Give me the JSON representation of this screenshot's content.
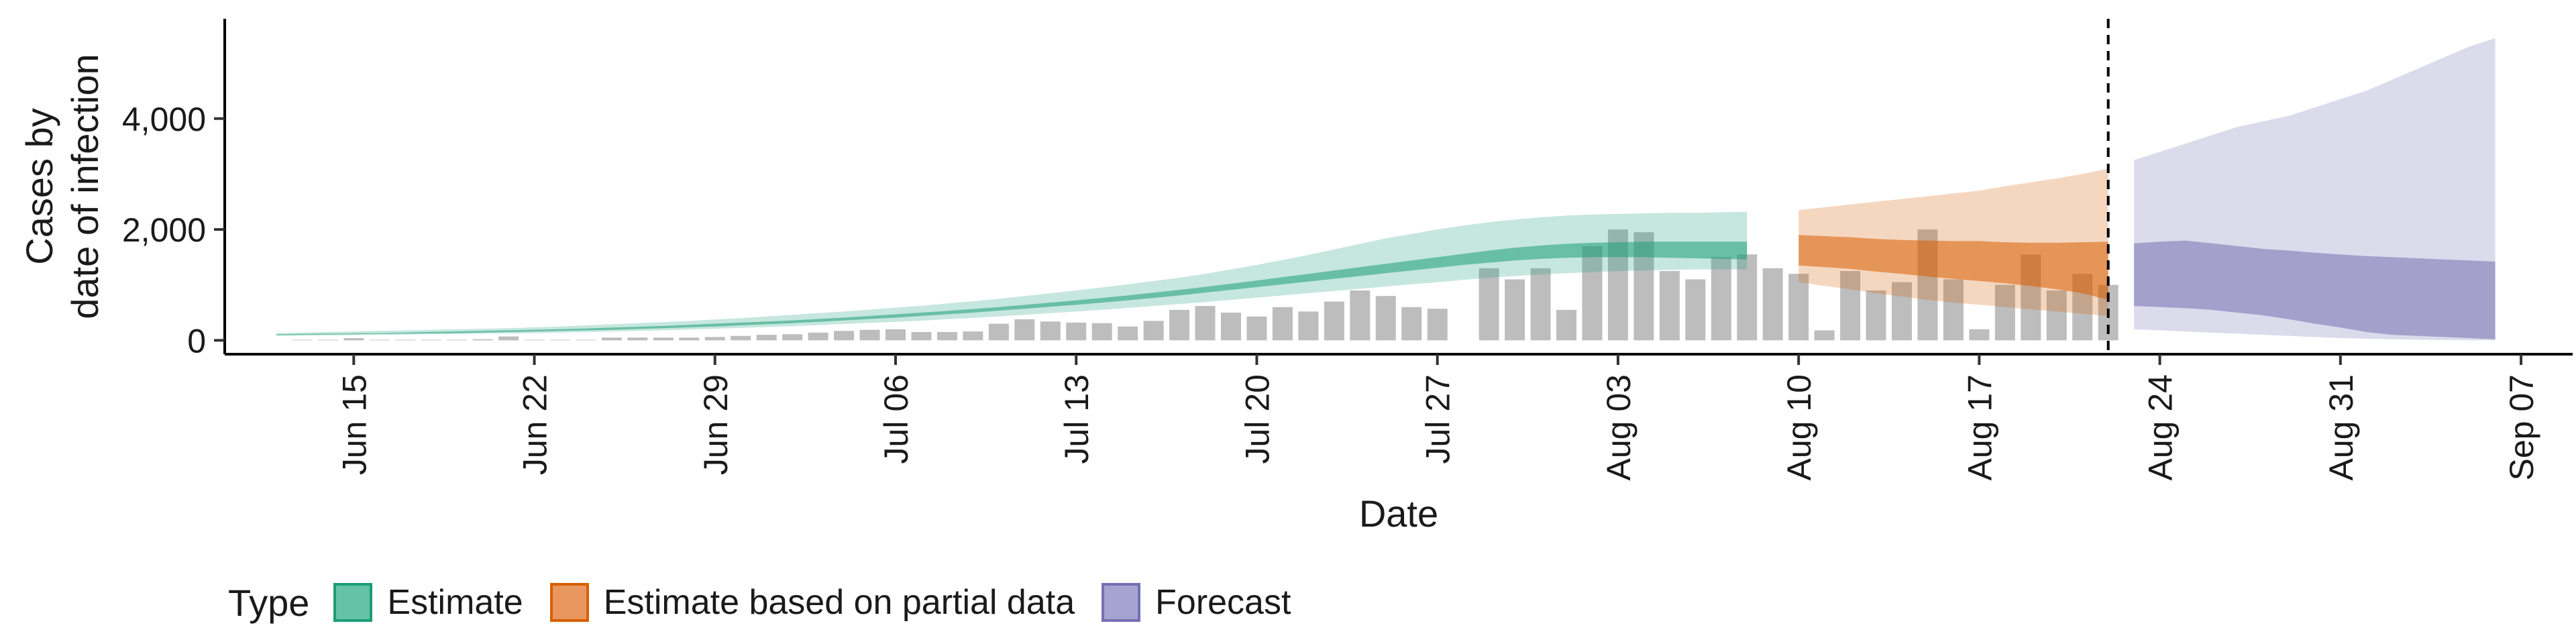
{
  "chart_data": {
    "type": "area",
    "xlabel": "Date",
    "ylabel": [
      "Cases by",
      "date of infection"
    ],
    "x_domain": [
      "2020-06-10",
      "2020-09-09"
    ],
    "ylim": [
      -250,
      5800
    ],
    "y_ticks": [
      0,
      2000,
      4000
    ],
    "y_tick_labels": [
      "0",
      "2,000",
      "4,000"
    ],
    "x_ticks": [
      {
        "date": "2020-06-15",
        "label": "Jun 15"
      },
      {
        "date": "2020-06-22",
        "label": "Jun 22"
      },
      {
        "date": "2020-06-29",
        "label": "Jun 29"
      },
      {
        "date": "2020-07-06",
        "label": "Jul 06"
      },
      {
        "date": "2020-07-13",
        "label": "Jul 13"
      },
      {
        "date": "2020-07-20",
        "label": "Jul 20"
      },
      {
        "date": "2020-07-27",
        "label": "Jul 27"
      },
      {
        "date": "2020-08-03",
        "label": "Aug 03"
      },
      {
        "date": "2020-08-10",
        "label": "Aug 10"
      },
      {
        "date": "2020-08-17",
        "label": "Aug 17"
      },
      {
        "date": "2020-08-24",
        "label": "Aug 24"
      },
      {
        "date": "2020-08-31",
        "label": "Aug 31"
      },
      {
        "date": "2020-09-07",
        "label": "Sep 07"
      }
    ],
    "vline_date": "2020-08-22",
    "grid": false,
    "legend": {
      "position": "bottom",
      "title": "Type",
      "items": [
        {
          "label": "Estimate",
          "fill": "#66c2a5",
          "border": "#1b9e77"
        },
        {
          "label": "Estimate based on partial data",
          "fill": "#e8975e",
          "border": "#d95f02"
        },
        {
          "label": "Forecast",
          "fill": "#a6a3d0",
          "border": "#7570b3"
        }
      ]
    },
    "bar_color": "#bdbdbd",
    "bars": {
      "start": "2020-06-13",
      "values": [
        10,
        10,
        40,
        10,
        10,
        10,
        10,
        20,
        70,
        10,
        10,
        10,
        50,
        50,
        50,
        50,
        60,
        80,
        100,
        110,
        140,
        170,
        190,
        200,
        150,
        150,
        160,
        300,
        380,
        340,
        320,
        310,
        250,
        350,
        550,
        620,
        500,
        430,
        600,
        520,
        700,
        900,
        800,
        600,
        570,
        0,
        1300,
        1100,
        1300,
        550,
        1700,
        2000,
        1950,
        1250,
        1100,
        1500,
        1550,
        1300,
        1200,
        180,
        1250,
        900,
        1050,
        2000,
        1100,
        200,
        1000,
        1550,
        900,
        1200,
        1000
      ]
    },
    "series": [
      {
        "name": "Estimate",
        "color": "#1b9e77",
        "start": "2020-06-12",
        "step": 1,
        "lower90": [
          80,
          85,
          90,
          95,
          100,
          105,
          110,
          115,
          120,
          125,
          130,
          140,
          150,
          160,
          170,
          180,
          195,
          210,
          225,
          240,
          255,
          275,
          295,
          315,
          335,
          355,
          380,
          405,
          430,
          460,
          490,
          520,
          550,
          585,
          620,
          655,
          690,
          730,
          770,
          810,
          850,
          890,
          930,
          970,
          1010,
          1050,
          1090,
          1130,
          1160,
          1190,
          1210,
          1230,
          1250,
          1260,
          1270,
          1280,
          1280,
          1280
        ],
        "upper90": [
          130,
          140,
          150,
          160,
          170,
          180,
          190,
          200,
          210,
          220,
          235,
          250,
          270,
          290,
          310,
          330,
          350,
          375,
          400,
          430,
          460,
          490,
          520,
          555,
          590,
          625,
          665,
          705,
          750,
          800,
          850,
          900,
          955,
          1010,
          1070,
          1130,
          1200,
          1280,
          1360,
          1450,
          1540,
          1640,
          1740,
          1840,
          1920,
          2000,
          2070,
          2130,
          2180,
          2220,
          2250,
          2270,
          2280,
          2290,
          2300,
          2300,
          2310,
          2320
        ],
        "lower50": [
          95,
          100,
          105,
          110,
          115,
          120,
          125,
          130,
          140,
          150,
          160,
          170,
          180,
          190,
          205,
          220,
          235,
          250,
          270,
          290,
          310,
          335,
          360,
          385,
          410,
          440,
          470,
          500,
          535,
          570,
          605,
          640,
          680,
          720,
          765,
          810,
          860,
          910,
          960,
          1010,
          1060,
          1110,
          1160,
          1210,
          1260,
          1310,
          1360,
          1400,
          1440,
          1470,
          1490,
          1500,
          1500,
          1500,
          1490,
          1480,
          1470,
          1460
        ],
        "upper50": [
          110,
          115,
          120,
          125,
          130,
          140,
          150,
          160,
          170,
          180,
          190,
          200,
          215,
          230,
          245,
          260,
          280,
          300,
          320,
          340,
          360,
          385,
          410,
          440,
          470,
          500,
          530,
          565,
          600,
          640,
          680,
          720,
          765,
          810,
          860,
          910,
          965,
          1020,
          1080,
          1140,
          1200,
          1260,
          1320,
          1380,
          1440,
          1500,
          1560,
          1620,
          1670,
          1710,
          1740,
          1760,
          1770,
          1780,
          1780,
          1780,
          1780,
          1780
        ]
      },
      {
        "name": "Estimate based on partial data",
        "color": "#d95f02",
        "start": "2020-08-10",
        "step": 1,
        "lower90": [
          1050,
          980,
          920,
          850,
          790,
          730,
          680,
          640,
          600,
          560,
          520,
          480,
          440
        ],
        "upper90": [
          2350,
          2400,
          2450,
          2500,
          2550,
          2600,
          2650,
          2700,
          2780,
          2850,
          2920,
          3000,
          3100
        ],
        "lower50": [
          1350,
          1320,
          1290,
          1240,
          1200,
          1150,
          1110,
          1070,
          1030,
          980,
          920,
          850,
          730
        ],
        "upper50": [
          1900,
          1880,
          1860,
          1830,
          1810,
          1800,
          1790,
          1790,
          1770,
          1760,
          1760,
          1770,
          1780
        ]
      },
      {
        "name": "Forecast",
        "color": "#7570b3",
        "start": "2020-08-23",
        "step": 1,
        "lower90": [
          200,
          180,
          160,
          140,
          120,
          100,
          80,
          60,
          40,
          30,
          20,
          10,
          5,
          0,
          0
        ],
        "upper90": [
          3250,
          3400,
          3550,
          3700,
          3850,
          3950,
          4050,
          4200,
          4350,
          4500,
          4700,
          4900,
          5100,
          5300,
          5450
        ],
        "lower50": [
          620,
          600,
          580,
          550,
          500,
          450,
          380,
          300,
          230,
          150,
          100,
          80,
          60,
          40,
          20
        ],
        "upper50": [
          1750,
          1780,
          1800,
          1750,
          1700,
          1650,
          1620,
          1580,
          1550,
          1520,
          1500,
          1480,
          1460,
          1440,
          1420
        ]
      }
    ]
  }
}
